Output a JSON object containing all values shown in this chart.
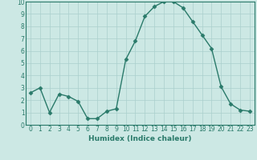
{
  "x": [
    0,
    1,
    2,
    3,
    4,
    5,
    6,
    7,
    8,
    9,
    10,
    11,
    12,
    13,
    14,
    15,
    16,
    17,
    18,
    19,
    20,
    21,
    22,
    23
  ],
  "y": [
    2.6,
    3.0,
    1.0,
    2.5,
    2.3,
    1.9,
    0.5,
    0.5,
    1.1,
    1.3,
    5.3,
    6.8,
    8.8,
    9.6,
    10.0,
    10.0,
    9.5,
    8.4,
    7.3,
    6.2,
    3.1,
    1.7,
    1.2,
    1.1
  ],
  "line_color": "#2a7a6a",
  "marker": "D",
  "marker_size": 2.5,
  "xlabel": "Humidex (Indice chaleur)",
  "bg_color": "#cce8e4",
  "grid_color": "#aacfcc",
  "xlim": [
    -0.5,
    23.5
  ],
  "ylim": [
    0,
    10
  ],
  "xticks": [
    0,
    1,
    2,
    3,
    4,
    5,
    6,
    7,
    8,
    9,
    10,
    11,
    12,
    13,
    14,
    15,
    16,
    17,
    18,
    19,
    20,
    21,
    22,
    23
  ],
  "yticks": [
    0,
    1,
    2,
    3,
    4,
    5,
    6,
    7,
    8,
    9,
    10
  ],
  "tick_color": "#2a7a6a",
  "label_fontsize": 6.5,
  "tick_fontsize": 5.5,
  "linewidth": 1.0
}
